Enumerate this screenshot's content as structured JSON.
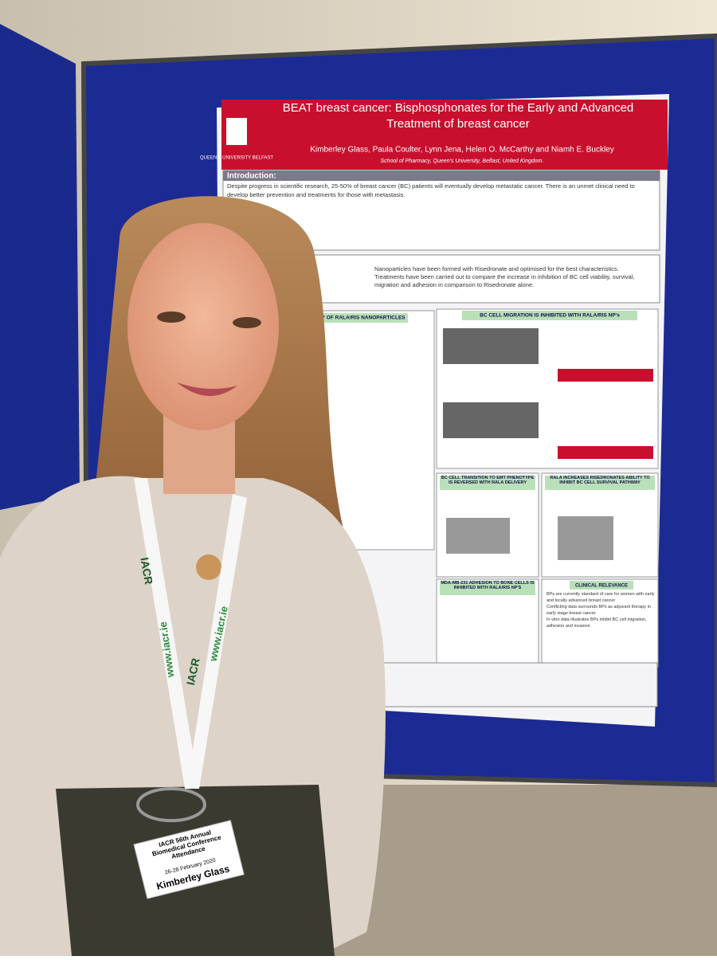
{
  "poster": {
    "logo": "QUEEN'S UNIVERSITY BELFAST",
    "title": "BEAT breast cancer: Bisphosphonates for the Early and Advanced Treatment of breast cancer",
    "authors": "Kimberley Glass, Paula Coulter, Lynn Jena, Helen O. McCarthy and Niamh E. Buckley",
    "affiliation": "School of Pharmacy, Queen's University, Belfast, United Kingdom.",
    "introduction": {
      "heading": "Introduction:",
      "text": "Despite progress in scientific research, 25-50% of breast cancer (BC) patients will eventually develop metastatic cancer. There is an unmet clinical need to develop better prevention and treatments for those with metastasis."
    },
    "aims": [
      "Nanoparticles have been formed with Risedronate and optimised for the best characteristics.",
      "Treatments have been carried out to compare the increase in inhibition of BC cell viability, survival, migration and adhesion in comparison to Risedronate alone."
    ],
    "sections": [
      "STABILITY OF RALA/RIS NANOPARTICLES",
      "BC CELL MIGRATION IS INHIBITED WITH RALA/RIS NP's",
      "BC CELL TRANSITION TO EMT PHENOTYPE IS REVERSED WITH RALA DELIVERY",
      "RALA INCREASES RISEDRONATES ABILITY TO INHIBIT BC CELL SURVIVAL PATHWAY",
      "MDA-MB-231 ADHESION TO BONE CELLS IS INHIBITED WITH RALA/RIS NP'S",
      "CLINICAL RELEVANCE"
    ],
    "clinical": [
      "BPs are currently standard of care for women with early and locally advanced breast cancer",
      "Conflicting data surrounds BPs as adjuvant therapy in early stage breast cancer",
      "In vitro data illustrates BPs inhibit BC cell migration, adhesion and invasion"
    ]
  },
  "lanyard": {
    "brand": "IACR",
    "url": "www.iacr.ie"
  },
  "badge": {
    "event": "IACR 56th Annual Biomedical Conference Attendance",
    "dates": "26-28 February 2020",
    "name": "Kimberley Glass"
  }
}
